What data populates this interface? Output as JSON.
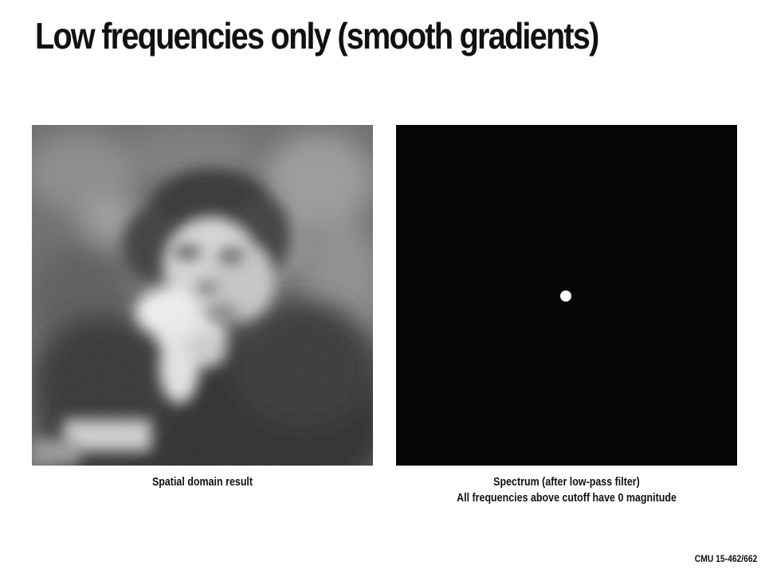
{
  "slide": {
    "title": "Low frequencies only (smooth gradients)"
  },
  "left_panel": {
    "caption": "Spatial domain result"
  },
  "right_panel": {
    "caption_line1": "Spectrum (after low-pass filter)",
    "caption_line2": "All frequencies above cutoff have 0 magnitude"
  },
  "footer": {
    "course": "CMU 15-462/662"
  },
  "colors": {
    "text": "#111111",
    "spectrum_background": "#050505",
    "spectrum_dot": "#ffffff"
  }
}
